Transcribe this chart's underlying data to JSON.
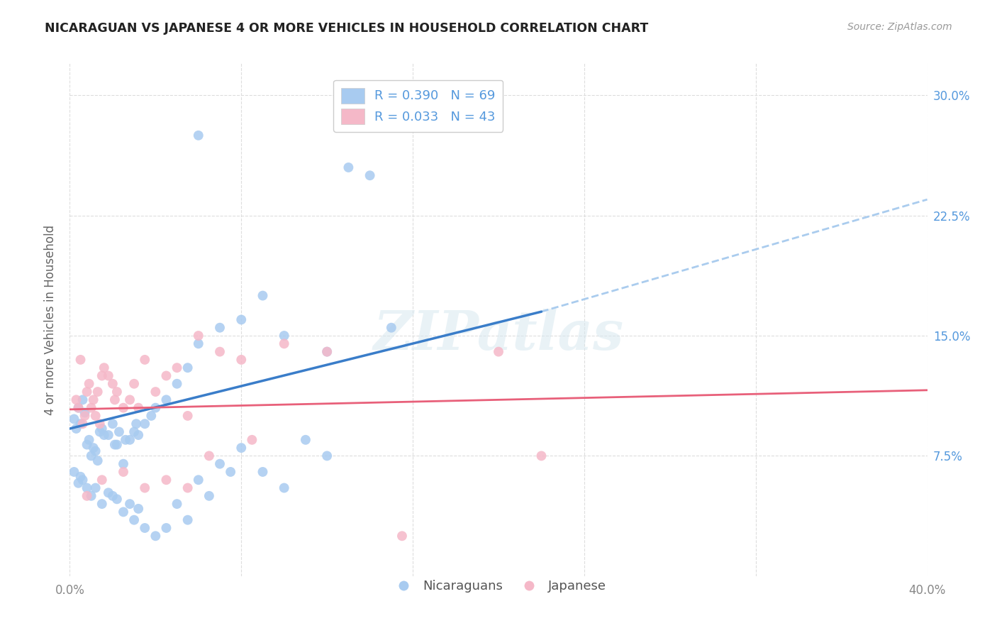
{
  "title": "NICARAGUAN VS JAPANESE 4 OR MORE VEHICLES IN HOUSEHOLD CORRELATION CHART",
  "source": "Source: ZipAtlas.com",
  "ylabel": "4 or more Vehicles in Household",
  "xlim": [
    0.0,
    40.0
  ],
  "ylim": [
    0.0,
    32.0
  ],
  "yticks": [
    7.5,
    15.0,
    22.5,
    30.0
  ],
  "ytick_labels": [
    "7.5%",
    "15.0%",
    "22.5%",
    "30.0%"
  ],
  "xticks": [
    0.0,
    40.0
  ],
  "xtick_labels": [
    "0.0%",
    "40.0%"
  ],
  "grid_yticks": [
    7.5,
    15.0,
    22.5,
    30.0
  ],
  "grid_xticks": [
    0.0,
    8.0,
    16.0,
    24.0,
    32.0,
    40.0
  ],
  "legend_label1": "R = 0.390   N = 69",
  "legend_label2": "R = 0.033   N = 43",
  "legend_bottom_label1": "Nicaraguans",
  "legend_bottom_label2": "Japanese",
  "blue_color": "#A8CBF0",
  "pink_color": "#F5B8C8",
  "blue_line_color": "#3A7DC9",
  "pink_line_color": "#E8607A",
  "blue_scatter": [
    [
      0.2,
      9.8
    ],
    [
      0.3,
      9.2
    ],
    [
      0.4,
      10.5
    ],
    [
      0.5,
      9.5
    ],
    [
      0.6,
      11.0
    ],
    [
      0.7,
      10.2
    ],
    [
      0.8,
      8.2
    ],
    [
      0.9,
      8.5
    ],
    [
      1.0,
      7.5
    ],
    [
      1.1,
      8.0
    ],
    [
      1.2,
      7.8
    ],
    [
      1.3,
      7.2
    ],
    [
      1.4,
      9.0
    ],
    [
      1.5,
      9.2
    ],
    [
      1.6,
      8.8
    ],
    [
      1.8,
      8.8
    ],
    [
      2.0,
      9.5
    ],
    [
      2.1,
      8.2
    ],
    [
      2.2,
      8.2
    ],
    [
      2.3,
      9.0
    ],
    [
      2.5,
      7.0
    ],
    [
      2.6,
      8.5
    ],
    [
      2.8,
      8.5
    ],
    [
      3.0,
      9.0
    ],
    [
      3.1,
      9.5
    ],
    [
      3.2,
      8.8
    ],
    [
      3.5,
      9.5
    ],
    [
      3.8,
      10.0
    ],
    [
      4.0,
      10.5
    ],
    [
      4.5,
      11.0
    ],
    [
      5.0,
      12.0
    ],
    [
      5.5,
      13.0
    ],
    [
      6.0,
      14.5
    ],
    [
      7.0,
      15.5
    ],
    [
      8.0,
      16.0
    ],
    [
      9.0,
      17.5
    ],
    [
      10.0,
      15.0
    ],
    [
      12.0,
      14.0
    ],
    [
      15.0,
      15.5
    ],
    [
      0.2,
      6.5
    ],
    [
      0.4,
      5.8
    ],
    [
      0.5,
      6.2
    ],
    [
      0.6,
      6.0
    ],
    [
      0.8,
      5.5
    ],
    [
      1.0,
      5.0
    ],
    [
      1.2,
      5.5
    ],
    [
      1.5,
      4.5
    ],
    [
      1.8,
      5.2
    ],
    [
      2.0,
      5.0
    ],
    [
      2.2,
      4.8
    ],
    [
      2.5,
      4.0
    ],
    [
      2.8,
      4.5
    ],
    [
      3.0,
      3.5
    ],
    [
      3.2,
      4.2
    ],
    [
      3.5,
      3.0
    ],
    [
      4.0,
      2.5
    ],
    [
      4.5,
      3.0
    ],
    [
      5.0,
      4.5
    ],
    [
      5.5,
      3.5
    ],
    [
      6.0,
      6.0
    ],
    [
      6.5,
      5.0
    ],
    [
      7.0,
      7.0
    ],
    [
      7.5,
      6.5
    ],
    [
      8.0,
      8.0
    ],
    [
      9.0,
      6.5
    ],
    [
      10.0,
      5.5
    ],
    [
      11.0,
      8.5
    ],
    [
      12.0,
      7.5
    ],
    [
      6.0,
      27.5
    ],
    [
      13.0,
      25.5
    ],
    [
      14.0,
      25.0
    ]
  ],
  "pink_scatter": [
    [
      0.3,
      11.0
    ],
    [
      0.4,
      10.5
    ],
    [
      0.5,
      13.5
    ],
    [
      0.6,
      9.5
    ],
    [
      0.7,
      10.0
    ],
    [
      0.8,
      11.5
    ],
    [
      0.9,
      12.0
    ],
    [
      1.0,
      10.5
    ],
    [
      1.1,
      11.0
    ],
    [
      1.2,
      10.0
    ],
    [
      1.3,
      11.5
    ],
    [
      1.4,
      9.5
    ],
    [
      1.5,
      12.5
    ],
    [
      1.6,
      13.0
    ],
    [
      1.8,
      12.5
    ],
    [
      2.0,
      12.0
    ],
    [
      2.1,
      11.0
    ],
    [
      2.2,
      11.5
    ],
    [
      2.5,
      10.5
    ],
    [
      2.8,
      11.0
    ],
    [
      3.0,
      12.0
    ],
    [
      3.2,
      10.5
    ],
    [
      3.5,
      13.5
    ],
    [
      4.0,
      11.5
    ],
    [
      4.5,
      12.5
    ],
    [
      5.0,
      13.0
    ],
    [
      5.5,
      10.0
    ],
    [
      6.0,
      15.0
    ],
    [
      7.0,
      14.0
    ],
    [
      8.0,
      13.5
    ],
    [
      10.0,
      14.5
    ],
    [
      12.0,
      14.0
    ],
    [
      20.0,
      14.0
    ],
    [
      0.8,
      5.0
    ],
    [
      1.5,
      6.0
    ],
    [
      2.5,
      6.5
    ],
    [
      3.5,
      5.5
    ],
    [
      4.5,
      6.0
    ],
    [
      5.5,
      5.5
    ],
    [
      6.5,
      7.5
    ],
    [
      8.5,
      8.5
    ],
    [
      22.0,
      7.5
    ],
    [
      15.5,
      2.5
    ]
  ],
  "blue_trendline_solid": [
    [
      0.0,
      9.2
    ],
    [
      22.0,
      16.5
    ]
  ],
  "blue_trendline_dashed": [
    [
      22.0,
      16.5
    ],
    [
      40.0,
      23.5
    ]
  ],
  "pink_trendline": [
    [
      0.0,
      10.4
    ],
    [
      40.0,
      11.6
    ]
  ],
  "watermark": "ZIPatlas",
  "background_color": "#FFFFFF",
  "grid_color": "#DDDDDD",
  "label_color_right": "#5599DD",
  "label_color_x": "#888888"
}
